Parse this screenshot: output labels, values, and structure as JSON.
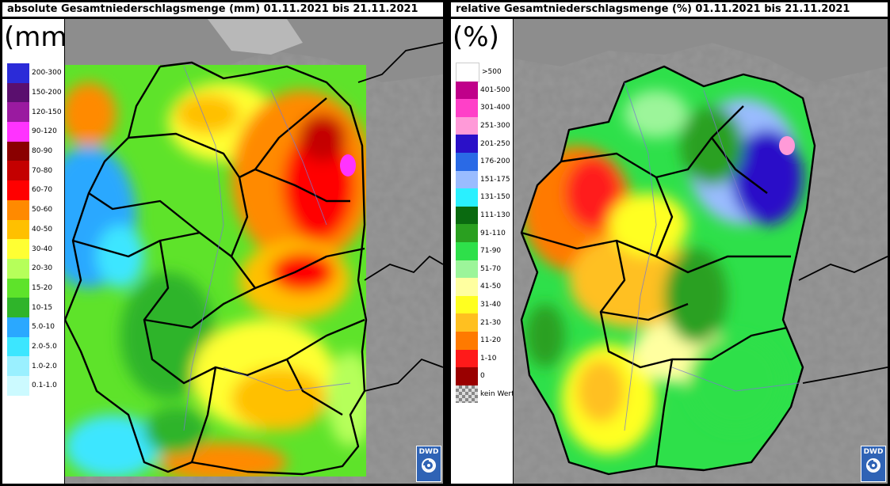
{
  "left": {
    "title": "absolute Gesamtniederschlagsmenge (mm) 01.11.2021 bis 21.11.2021",
    "unit": "(mm)",
    "legend": [
      {
        "label": "200-300",
        "color": "#2b2bd8"
      },
      {
        "label": "150-200",
        "color": "#5a0f6e"
      },
      {
        "label": "120-150",
        "color": "#9a1aa0"
      },
      {
        "label": "90-120",
        "color": "#ff33ff"
      },
      {
        "label": "80-90",
        "color": "#8a0000"
      },
      {
        "label": "70-80",
        "color": "#c40000"
      },
      {
        "label": "60-70",
        "color": "#ff0000"
      },
      {
        "label": "50-60",
        "color": "#ff8a00"
      },
      {
        "label": "40-50",
        "color": "#ffc000"
      },
      {
        "label": "30-40",
        "color": "#ffff33"
      },
      {
        "label": "20-30",
        "color": "#b6ff5a"
      },
      {
        "label": "15-20",
        "color": "#5ee32a"
      },
      {
        "label": "10-15",
        "color": "#2fb42a"
      },
      {
        "label": "5.0-10",
        "color": "#2aa8ff"
      },
      {
        "label": "2.0-5.0",
        "color": "#3ce6ff"
      },
      {
        "label": "1.0-2.0",
        "color": "#9af0ff"
      },
      {
        "label": "0.1-1.0",
        "color": "#ccfaff"
      }
    ],
    "logo": "DWD"
  },
  "right": {
    "title": "relative Gesamtniederschlagsmenge (%) 01.11.2021 bis 21.11.2021",
    "unit": "(%)",
    "legend": [
      {
        "label": ">500",
        "color": "#ffffff"
      },
      {
        "label": "401-500",
        "color": "#c0008a"
      },
      {
        "label": "301-400",
        "color": "#ff40c8"
      },
      {
        "label": "251-300",
        "color": "#ff9ad8"
      },
      {
        "label": "201-250",
        "color": "#2a10c8"
      },
      {
        "label": "176-200",
        "color": "#2a6ae6"
      },
      {
        "label": "151-175",
        "color": "#9abcff"
      },
      {
        "label": "131-150",
        "color": "#2af0ff"
      },
      {
        "label": "111-130",
        "color": "#0a6a10"
      },
      {
        "label": "91-110",
        "color": "#2aa020"
      },
      {
        "label": "71-90",
        "color": "#2ee04a"
      },
      {
        "label": "51-70",
        "color": "#9cf59a"
      },
      {
        "label": "41-50",
        "color": "#ffffa0"
      },
      {
        "label": "31-40",
        "color": "#ffff20"
      },
      {
        "label": "21-30",
        "color": "#ffc020"
      },
      {
        "label": "11-20",
        "color": "#ff7a00"
      },
      {
        "label": "1-10",
        "color": "#ff1a1a"
      },
      {
        "label": "0",
        "color": "#9a0000"
      },
      {
        "label": "kein Wert",
        "color": "checker"
      }
    ],
    "logo": "DWD"
  }
}
